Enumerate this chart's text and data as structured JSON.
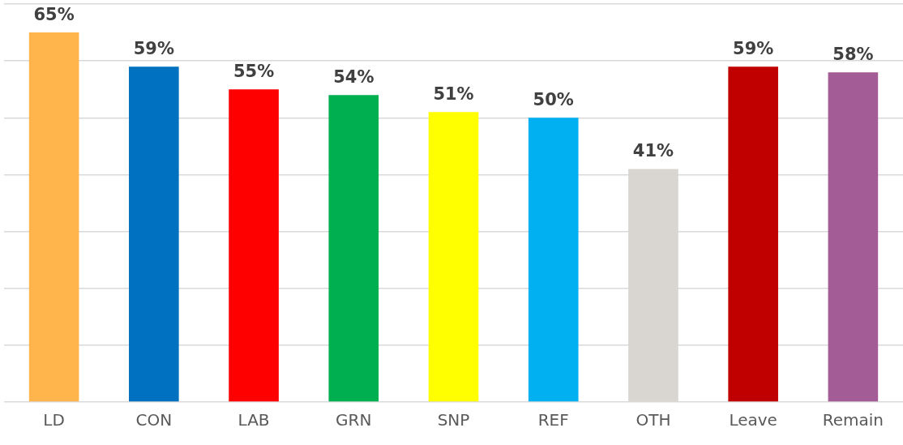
{
  "chart_data": {
    "type": "bar",
    "categories": [
      "LD",
      "CON",
      "LAB",
      "GRN",
      "SNP",
      "REF",
      "OTH",
      "Leave",
      "Remain"
    ],
    "values": [
      65,
      59,
      55,
      54,
      51,
      50,
      41,
      59,
      58
    ],
    "value_labels": [
      "65%",
      "59%",
      "55%",
      "54%",
      "51%",
      "50%",
      "41%",
      "59%",
      "58%"
    ],
    "colors": [
      "#ffb44c",
      "#0070c0",
      "#ff0000",
      "#00b050",
      "#ffff00",
      "#00b0f0",
      "#d9d5d0",
      "#c00000",
      "#a45c96"
    ],
    "ylim": [
      0,
      70
    ],
    "yticks": [
      {
        "value": 0,
        "label": null
      },
      {
        "value": 10,
        "label": null
      },
      {
        "value": 20,
        "label": null
      },
      {
        "value": 30,
        "label": null
      },
      {
        "value": 40,
        "label": null
      },
      {
        "value": 50,
        "label": null
      },
      {
        "value": 60,
        "label": null
      },
      {
        "value": 70,
        "label": null
      }
    ],
    "grid": "y",
    "legend": false,
    "tick_labels": "x"
  }
}
